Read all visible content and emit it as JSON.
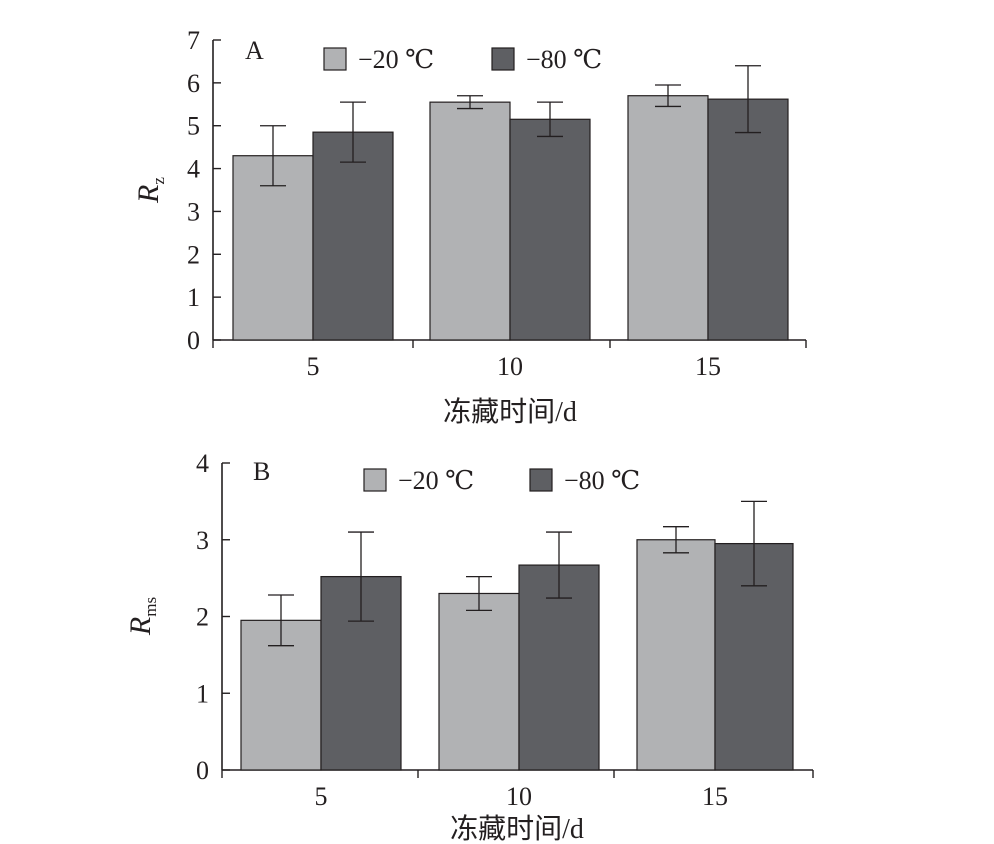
{
  "chart_data": [
    {
      "type": "bar",
      "panel_label": "A",
      "categories": [
        "5",
        "10",
        "15"
      ],
      "series": [
        {
          "name": "−20 ℃",
          "values": [
            4.3,
            5.55,
            5.7
          ],
          "errors": [
            0.7,
            0.15,
            0.25
          ],
          "color": "#b1b2b4"
        },
        {
          "name": "−80 ℃",
          "values": [
            4.85,
            5.15,
            5.62
          ],
          "errors": [
            0.7,
            0.4,
            0.78
          ],
          "color": "#5e5f63"
        }
      ],
      "xlabel": "冻藏时间/d",
      "ylabel": {
        "main": "R",
        "sub": "z"
      },
      "ylim": [
        0,
        7
      ],
      "yticks": [
        "0",
        "1",
        "2",
        "3",
        "4",
        "5",
        "6",
        "7"
      ],
      "legend": "top",
      "grid": false
    },
    {
      "type": "bar",
      "panel_label": "B",
      "categories": [
        "5",
        "10",
        "15"
      ],
      "series": [
        {
          "name": "−20 ℃",
          "values": [
            1.95,
            2.3,
            3.0
          ],
          "errors": [
            0.33,
            0.22,
            0.17
          ],
          "color": "#b1b2b4"
        },
        {
          "name": "−80 ℃",
          "values": [
            2.52,
            2.67,
            2.95
          ],
          "errors": [
            0.58,
            0.43,
            0.55
          ],
          "color": "#5e5f63"
        }
      ],
      "xlabel": "冻藏时间/d",
      "ylabel": {
        "main": "R",
        "sub": "ms"
      },
      "ylim": [
        0,
        4
      ],
      "yticks": [
        "0",
        "1",
        "2",
        "3",
        "4"
      ],
      "legend": "top",
      "grid": false
    }
  ]
}
